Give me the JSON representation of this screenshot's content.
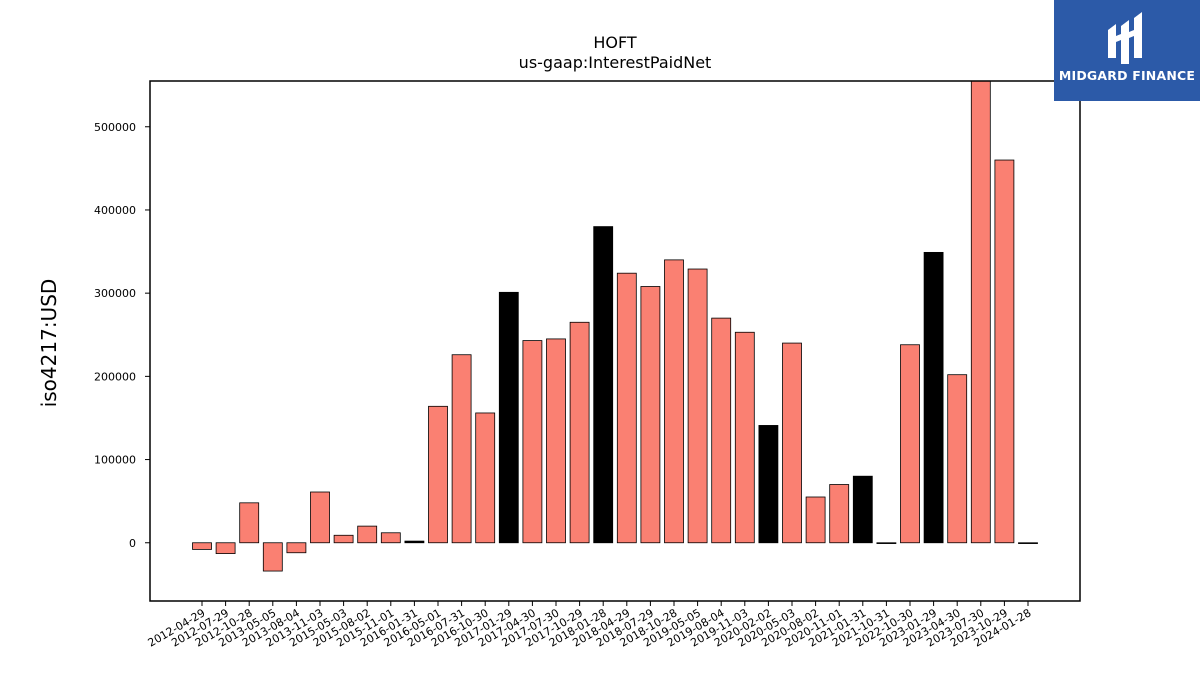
{
  "brand": {
    "name": "MIDGARD FINANCE",
    "logo_icon": "midgard-logo-icon",
    "background_color": "#2c5aa8"
  },
  "chart_data": {
    "type": "bar",
    "title": "HOFT",
    "subtitle": "us-gaap:InterestPaidNet",
    "xlabel": "",
    "ylabel": "iso4217:USD",
    "ylim": [
      -70000,
      555000
    ],
    "yticks": [
      0,
      100000,
      200000,
      300000,
      400000,
      500000
    ],
    "grid": false,
    "colors": {
      "default": "#fa8072",
      "highlight": "#000000",
      "edge": "#000000"
    },
    "categories": [
      "2012-04-29",
      "2012-07-29",
      "2012-10-28",
      "2013-05-05",
      "2013-08-04",
      "2013-11-03",
      "2015-05-03",
      "2015-08-02",
      "2015-11-01",
      "2016-01-31",
      "2016-05-01",
      "2016-07-31",
      "2016-10-30",
      "2017-01-29",
      "2017-04-30",
      "2017-07-30",
      "2017-10-29",
      "2018-01-28",
      "2018-04-29",
      "2018-07-29",
      "2018-10-28",
      "2019-05-05",
      "2019-08-04",
      "2019-11-03",
      "2020-02-02",
      "2020-05-03",
      "2020-08-02",
      "2020-11-01",
      "2021-01-31",
      "2021-10-31",
      "2022-10-30",
      "2023-01-29",
      "2023-04-30",
      "2023-07-30",
      "2023-10-29",
      "2024-01-28"
    ],
    "values": [
      -8000,
      -13000,
      48000,
      -34000,
      -12000,
      61000,
      9000,
      20000,
      12000,
      2000,
      164000,
      226000,
      156000,
      301000,
      243000,
      245000,
      265000,
      380000,
      324000,
      308000,
      340000,
      329000,
      270000,
      253000,
      141000,
      240000,
      55000,
      70000,
      80000,
      0,
      238000,
      349000,
      202000,
      555000,
      460000,
      0
    ],
    "highlight": [
      false,
      false,
      false,
      false,
      false,
      false,
      false,
      false,
      false,
      true,
      false,
      false,
      false,
      true,
      false,
      false,
      false,
      true,
      false,
      false,
      false,
      false,
      false,
      false,
      true,
      false,
      false,
      false,
      true,
      false,
      false,
      true,
      false,
      false,
      false,
      false
    ]
  }
}
